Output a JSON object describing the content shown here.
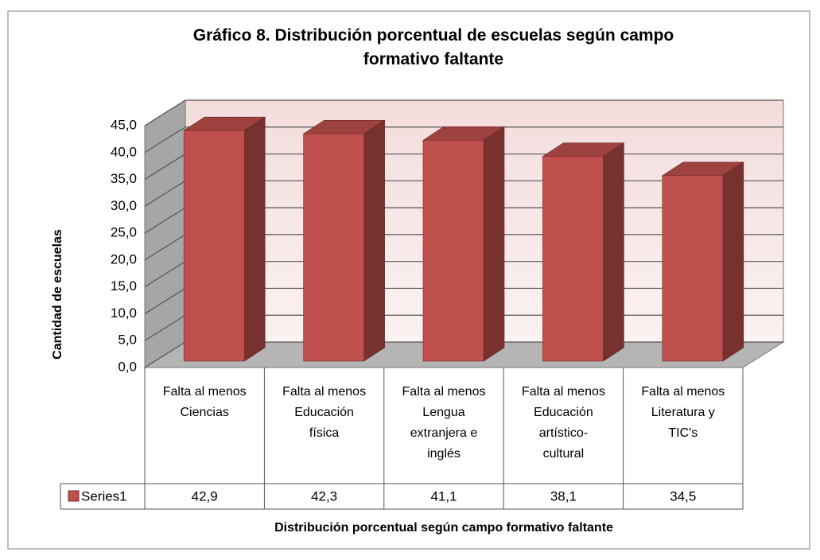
{
  "chart_data": {
    "type": "bar3d",
    "title": "Gráfico 8. Distribución porcentual de escuelas según campo formativo faltante",
    "y_label": "Cantidad de escuelas",
    "x_label": "Distribución porcentual según campo formativo faltante",
    "categories": [
      "Falta al menos Ciencias",
      "Falta al menos Educación física",
      "Falta al menos Lengua extranjera e inglés",
      "Falta al menos Educación artístico-cultural",
      "Falta al menos Literatura y TIC's"
    ],
    "series": [
      {
        "name": "Series1",
        "color": "#c0504d",
        "values": [
          42.9,
          42.3,
          41.1,
          38.1,
          34.5
        ],
        "value_labels": [
          "42,9",
          "42,3",
          "41,1",
          "38,1",
          "34,5"
        ]
      }
    ],
    "ylim": [
      0,
      45
    ],
    "yticks": [
      {
        "value": 0,
        "label": "0,0"
      },
      {
        "value": 5,
        "label": "5,0"
      },
      {
        "value": 10,
        "label": "10,0"
      },
      {
        "value": 15,
        "label": "15,0"
      },
      {
        "value": 20,
        "label": "20,0"
      },
      {
        "value": 25,
        "label": "25,0"
      },
      {
        "value": 30,
        "label": "30,0"
      },
      {
        "value": 35,
        "label": "35,0"
      },
      {
        "value": 40,
        "label": "40,0"
      },
      {
        "value": 45,
        "label": "45,0"
      }
    ],
    "grid": true
  }
}
